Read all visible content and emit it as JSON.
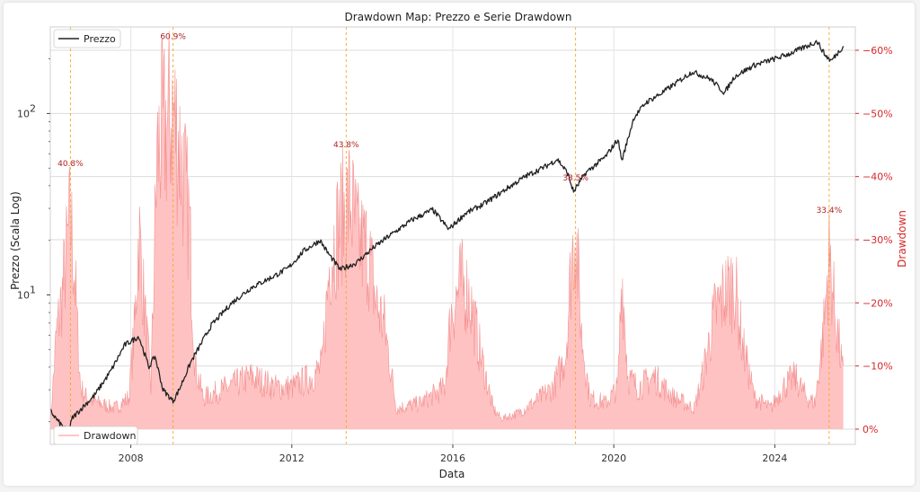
{
  "chart_data": {
    "type": "line",
    "title": "Drawdown Map: Prezzo e Serie Drawdown",
    "xlabel": "Data",
    "ylabel_left": "Prezzo (Scala Log)",
    "ylabel_right": "Drawdown",
    "x_ticks": [
      "2008",
      "2012",
      "2016",
      "2020",
      "2024"
    ],
    "xlim": [
      2006.0,
      2026.0
    ],
    "y_left_scale": "log",
    "y_left_ticks": [
      {
        "value": 10,
        "base": "10",
        "exp": "1"
      },
      {
        "value": 100,
        "base": "10",
        "exp": "2"
      }
    ],
    "y_left_lim": [
      1.5,
      300
    ],
    "y_right_ticks": [
      "0%",
      "−10%",
      "−20%",
      "−30%",
      "−40%",
      "−50%",
      "−60%"
    ],
    "y_right_lim": [
      0,
      -65
    ],
    "grid": true,
    "legend_price": {
      "label": "Prezzo",
      "placement": "upper-left",
      "color": "#222222"
    },
    "legend_drawdown": {
      "label": "Drawdown",
      "placement": "lower-left",
      "color": "#ffb3b3"
    },
    "price_color": "#222222",
    "drawdown_fill": "#ffc2c2",
    "drawdown_line": "#f08080",
    "vline_color": "#f5a623",
    "price_series": {
      "name": "Prezzo",
      "x": [
        2006.0,
        2006.2,
        2006.45,
        2006.55,
        2006.8,
        2007.1,
        2007.5,
        2007.85,
        2008.2,
        2008.45,
        2008.6,
        2008.8,
        2009.05,
        2009.2,
        2009.5,
        2010.0,
        2010.5,
        2011.0,
        2011.5,
        2011.9,
        2012.3,
        2012.7,
        2012.9,
        2013.2,
        2013.6,
        2014.0,
        2014.4,
        2015.0,
        2015.5,
        2015.9,
        2016.3,
        2016.8,
        2017.3,
        2017.8,
        2018.3,
        2018.6,
        2018.85,
        2019.0,
        2019.3,
        2019.8,
        2020.1,
        2020.2,
        2020.5,
        2020.8,
        2021.2,
        2021.6,
        2021.95,
        2022.4,
        2022.75,
        2023.0,
        2023.5,
        2024.0,
        2024.4,
        2024.7,
        2025.05,
        2025.25,
        2025.4,
        2025.7
      ],
      "y": [
        2.3,
        2.0,
        1.75,
        2.1,
        2.4,
        2.8,
        3.8,
        5.3,
        5.9,
        4.0,
        4.6,
        3.0,
        2.6,
        3.0,
        4.3,
        6.8,
        9.0,
        11.0,
        12.5,
        14.0,
        17.5,
        20.0,
        17.0,
        13.8,
        15.0,
        18.0,
        21.0,
        26.0,
        29.5,
        23.0,
        28.0,
        32.0,
        38.0,
        45.0,
        51.0,
        56.0,
        47.0,
        37.0,
        47.0,
        58.0,
        72.0,
        55.0,
        95.0,
        115.0,
        130.0,
        150.0,
        170.0,
        155.0,
        130.0,
        160.0,
        185.0,
        200.0,
        215.0,
        230.0,
        250.0,
        210.0,
        195.0,
        235.0
      ]
    },
    "drawdown_series": {
      "name": "Drawdown",
      "x": [
        2006.0,
        2006.15,
        2006.3,
        2006.5,
        2006.6,
        2006.75,
        2006.9,
        2007.2,
        2007.6,
        2007.95,
        2008.1,
        2008.2,
        2008.35,
        2008.5,
        2008.65,
        2008.75,
        2008.9,
        2009.05,
        2009.2,
        2009.45,
        2009.6,
        2009.8,
        2010.4,
        2011.0,
        2011.6,
        2012.0,
        2012.5,
        2012.75,
        2012.95,
        2013.2,
        2013.45,
        2013.65,
        2013.9,
        2014.1,
        2014.3,
        2014.6,
        2015.2,
        2015.8,
        2015.95,
        2016.2,
        2016.4,
        2016.7,
        2017.0,
        2017.2,
        2017.6,
        2018.0,
        2018.5,
        2018.8,
        2018.95,
        2019.05,
        2019.2,
        2019.4,
        2019.8,
        2020.1,
        2020.2,
        2020.35,
        2020.6,
        2021.0,
        2021.5,
        2022.0,
        2022.2,
        2022.5,
        2022.75,
        2023.0,
        2023.2,
        2023.5,
        2023.9,
        2024.2,
        2024.5,
        2024.8,
        2025.0,
        2025.2,
        2025.35,
        2025.5,
        2025.7
      ],
      "y": [
        -1,
        -18,
        -26,
        -40.8,
        -30,
        -8,
        -6,
        -5,
        -4,
        -6,
        -20,
        -38,
        -22,
        -8,
        -52,
        -56,
        -58,
        -60.9,
        -55,
        -40,
        -12,
        -6,
        -8,
        -10,
        -8,
        -8,
        -10,
        -12,
        -33,
        -40,
        -43.8,
        -36,
        -34,
        -24,
        -20,
        -4,
        -5,
        -8,
        -22,
        -28,
        -26,
        -14,
        -4,
        -2,
        -3,
        -5,
        -8,
        -14,
        -32,
        -38.5,
        -18,
        -6,
        -5,
        -8,
        -30,
        -10,
        -8,
        -10,
        -6,
        -4,
        -10,
        -22,
        -26,
        -28,
        -16,
        -6,
        -4,
        -8,
        -10,
        -6,
        -5,
        -18,
        -33.4,
        -22,
        -10
      ]
    },
    "annotations": [
      {
        "x": 2006.5,
        "value": -40.8,
        "label": "40.8%"
      },
      {
        "x": 2009.05,
        "value": -60.9,
        "label": "60.9%"
      },
      {
        "x": 2013.35,
        "value": -43.8,
        "label": "43.8%"
      },
      {
        "x": 2019.05,
        "value": -38.5,
        "label": "38.5%"
      },
      {
        "x": 2025.35,
        "value": -33.4,
        "label": "33.4%"
      }
    ],
    "drawdown_vlines": [
      2006.5,
      2009.05,
      2013.35,
      2019.05,
      2025.35
    ]
  }
}
